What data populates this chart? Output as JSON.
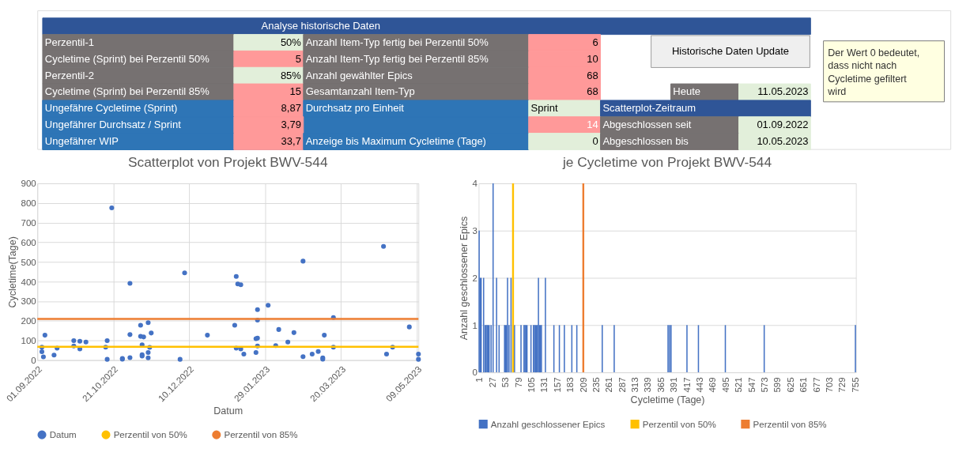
{
  "chart_data": [
    {
      "type": "other",
      "title": "Analyse historische Daten",
      "annotations": [
        "Perzentil-1",
        "50%",
        "Anzahl Item-Typ fertig bei Perzentil 50%",
        "6",
        "Cycletime (Sprint) bei Perzentil 50%",
        "5",
        "Anzahl Item-Typ fertig bei Perzentil 85%",
        "10",
        "Perzentil-2",
        "85%",
        "Anzahl gewählter Epics",
        "68",
        "Cycletime (Sprint) bei Perzentil 85%",
        "15",
        "Gesamtanzahl Item-Typ",
        "68",
        "Heute",
        "11.05.2023",
        "Ungefähre Cycletime (Sprint)",
        "8,87",
        "Durchsatz pro Einheit",
        "Sprint",
        "Scatterplot-Zeitraum",
        "Ungefährer Durchsatz / Sprint",
        "3,79",
        "14",
        "Abgeschlossen seit",
        "01.09.2022",
        "Ungefährer WIP",
        "33,7",
        "Anzeige bis Maximum Cycletime (Tage)",
        "0",
        "Abgeschlossen bis",
        "10.05.2023",
        "Historische Daten Update",
        "Der Wert 0 bedeutet,\ndass nicht nach\nCycletime gefiltert\nwird"
      ]
    },
    {
      "type": "scatter",
      "title": "Scatterplot von Projekt BWV-544",
      "xlabel": "Datum",
      "ylabel": "Cycletime(Tage)",
      "marker": "circle",
      "grid": true,
      "legend": "bottom",
      "x": [
        "2022-09-04",
        "2022-09-04",
        "2022-09-05",
        "2022-09-06",
        "2022-09-12",
        "2022-09-14",
        "2022-09-25",
        "2022-09-25",
        "2022-09-29",
        "2022-09-29",
        "2022-10-03",
        "2022-10-16",
        "2022-10-17",
        "2022-10-17",
        "2022-10-20",
        "2022-10-27",
        "2022-10-27",
        "2022-11-01",
        "2022-11-01",
        "2022-11-01",
        "2022-11-08",
        "2022-11-08",
        "2022-11-09",
        "2022-11-09",
        "2022-11-09",
        "2022-11-10",
        "2022-11-13",
        "2022-11-13",
        "2022-11-13",
        "2022-11-14",
        "2022-11-15",
        "2022-12-04",
        "2022-12-07",
        "2022-12-22",
        "2023-01-09",
        "2023-01-10",
        "2023-01-10",
        "2023-01-11",
        "2023-01-13",
        "2023-01-13",
        "2023-01-15",
        "2023-01-23",
        "2023-01-23",
        "2023-01-24",
        "2023-01-24",
        "2023-01-24",
        "2023-01-24",
        "2023-01-31",
        "2023-02-05",
        "2023-02-07",
        "2023-02-13",
        "2023-02-17",
        "2023-02-23",
        "2023-02-23",
        "2023-03-01",
        "2023-03-05",
        "2023-03-08",
        "2023-03-08",
        "2023-03-09",
        "2023-03-15",
        "2023-03-15",
        "2023-04-17",
        "2023-04-19",
        "2023-04-23",
        "2023-05-04",
        "2023-05-10",
        "2023-05-10"
      ],
      "series": [
        {
          "name": "Datum",
          "color": "#4472c4",
          "values": [
            66,
            43,
            17,
            127,
            26,
            61,
            99,
            72,
            96,
            57,
            92,
            66,
            99,
            4,
            775,
            5,
            9,
            391,
            130,
            13,
            178,
            121,
            78,
            28,
            21,
            118,
            191,
            39,
            12,
            65,
            138,
            4,
            444,
            127,
            178,
            426,
            61,
            388,
            384,
            57,
            31,
            39,
            109,
            257,
            204,
            112,
            72,
            279,
            74,
            156,
            92,
            140,
            18,
            504,
            31,
            44,
            12,
            5,
            127,
            217,
            66,
            579,
            31,
            66,
            169,
            31,
            4
          ]
        }
      ],
      "xlim": [
        "2022-09-01",
        "2023-05-10"
      ],
      "xticks": [
        {
          "value": "2022-09-01",
          "label": "01.09.2022"
        },
        {
          "value": "2022-10-21",
          "label": "21.10.2022"
        },
        {
          "value": "2022-12-10",
          "label": "10.12.2022"
        },
        {
          "value": "2023-01-29",
          "label": "29.01.2023"
        },
        {
          "value": "2023-03-20",
          "label": "20.03.2023"
        },
        {
          "value": "2023-05-09",
          "label": "09.05.2023"
        }
      ],
      "ylim": [
        0,
        900
      ],
      "yticks": [
        0,
        100,
        200,
        300,
        400,
        500,
        600,
        700,
        800,
        900
      ],
      "ref_lines": [
        {
          "axis": "y",
          "value": 68,
          "label": "Perzentil von 50%",
          "color": "#ffc000"
        },
        {
          "axis": "y",
          "value": 210,
          "label": "Perzentil von 85%",
          "color": "#ed7d31"
        }
      ]
    },
    {
      "type": "bar",
      "title": "je Cycletime von Projekt BWV-544",
      "xlabel": "Cycletime (Tage)",
      "ylabel": "Anzahl geschlossener Epics",
      "grid": "y",
      "legend": "bottom",
      "x": [
        1,
        3,
        5,
        10,
        13,
        15,
        17,
        19,
        21,
        25,
        29,
        36,
        41,
        52,
        54,
        56,
        58,
        61,
        65,
        68,
        72,
        85,
        91,
        93,
        95,
        97,
        105,
        110,
        112,
        114,
        116,
        118,
        120,
        122,
        124,
        126,
        134,
        151,
        162,
        172,
        187,
        197,
        248,
        272,
        380,
        383,
        386,
        418,
        441,
        495,
        573,
        756
      ],
      "series": [
        {
          "name": "Anzahl geschlossener Epics",
          "color": "#4472c4",
          "values": [
            3,
            2,
            2,
            2,
            1,
            1,
            1,
            1,
            1,
            1,
            4,
            2,
            1,
            1,
            1,
            1,
            2,
            1,
            2,
            null,
            1,
            1,
            1,
            1,
            1,
            1,
            1,
            1,
            1,
            1,
            1,
            1,
            2,
            1,
            1,
            1,
            2,
            1,
            1,
            1,
            1,
            1,
            1,
            1,
            1,
            1,
            1,
            1,
            1,
            1,
            1,
            1
          ]
        }
      ],
      "xlim": [
        0,
        757
      ],
      "xticks": [
        1,
        27,
        53,
        79,
        105,
        131,
        157,
        183,
        209,
        235,
        261,
        287,
        313,
        339,
        365,
        391,
        417,
        443,
        469,
        495,
        521,
        547,
        573,
        599,
        625,
        651,
        677,
        703,
        729,
        755
      ],
      "ylim": [
        0,
        4
      ],
      "yticks": [
        0,
        1,
        2,
        3,
        4
      ],
      "ref_lines": [
        {
          "axis": "x",
          "value": 69,
          "label": "Perzentil von 50%",
          "color": "#ffc000"
        },
        {
          "axis": "x",
          "value": 210,
          "label": "Perzentil von 85%",
          "color": "#ed7d31"
        }
      ]
    }
  ]
}
